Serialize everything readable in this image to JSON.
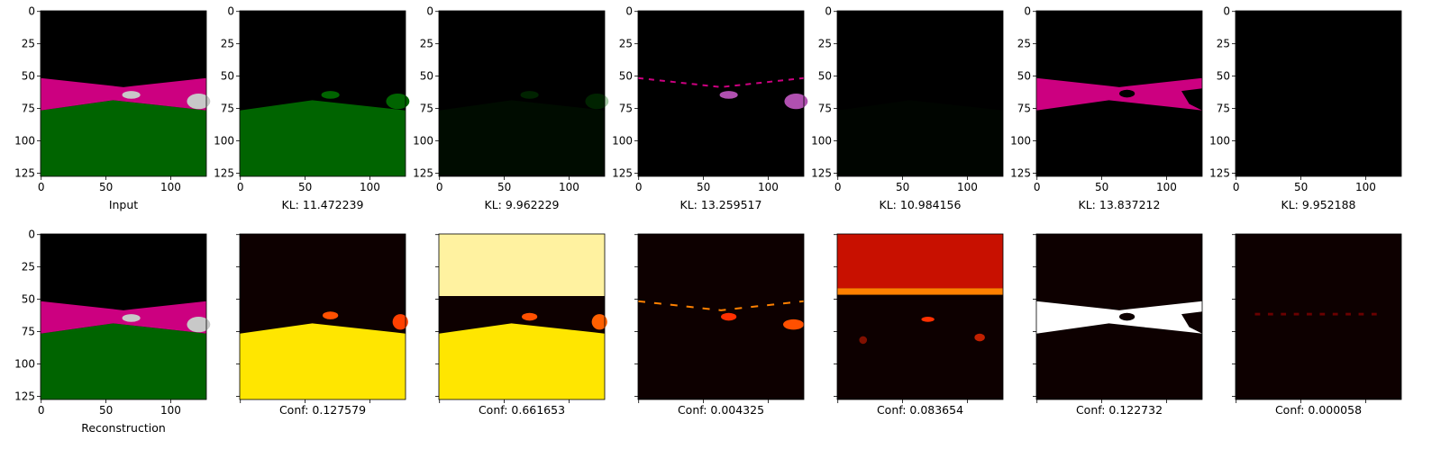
{
  "chart_data": {
    "type": "image-grid",
    "rows": 2,
    "cols": 7,
    "image_size": [
      128,
      128
    ],
    "x_ticks": [
      0,
      50,
      100
    ],
    "y_ticks": [
      0,
      25,
      50,
      75,
      100,
      125
    ],
    "colormap": "hot",
    "top_row": [
      {
        "caption": "Input",
        "kind": "scene",
        "channels": [
          "sky",
          "road",
          "grass",
          "cars"
        ],
        "intensity": 1.0
      },
      {
        "caption": "KL: 11.472239",
        "kind": "scene",
        "channels": [
          "grass",
          "cars"
        ],
        "intensity": 1.0
      },
      {
        "caption": "KL: 9.962229",
        "kind": "scene",
        "channels": [
          "grass",
          "cars"
        ],
        "intensity": 0.12
      },
      {
        "caption": "KL: 13.259517",
        "kind": "scene",
        "channels": [
          "road-edges",
          "cars"
        ],
        "intensity": 0.7
      },
      {
        "caption": "KL: 10.984156",
        "kind": "scene",
        "channels": [
          "grass"
        ],
        "intensity": 0.05
      },
      {
        "caption": "KL: 13.837212",
        "kind": "scene",
        "channels": [
          "road"
        ],
        "intensity": 1.0
      },
      {
        "caption": "KL: 9.952188",
        "kind": "scene",
        "channels": [],
        "intensity": 0.0
      }
    ],
    "bottom_row": [
      {
        "caption": "Reconstruction",
        "kind": "scene",
        "channels": [
          "sky",
          "road",
          "grass",
          "cars"
        ],
        "intensity": 1.0
      },
      {
        "caption": "Conf: 0.127579",
        "kind": "heatmap",
        "value": 0.127579
      },
      {
        "caption": "Conf: 0.661653",
        "kind": "heatmap",
        "value": 0.661653
      },
      {
        "caption": "Conf: 0.004325",
        "kind": "heatmap",
        "value": 0.004325
      },
      {
        "caption": "Conf: 0.083654",
        "kind": "heatmap",
        "value": 0.083654
      },
      {
        "caption": "Conf: 0.122732",
        "kind": "heatmap",
        "value": 0.122732
      },
      {
        "caption": "Conf: 0.000058",
        "kind": "heatmap",
        "value": 5.8e-05
      }
    ],
    "colors": {
      "sky": "#000000",
      "road": "#cc0080",
      "grass": "#006400",
      "car": "#c8c8c8",
      "heat_dark": "#0d0000",
      "heat_red": "#e00000",
      "heat_yellow": "#ffe600",
      "heat_white": "#ffffff"
    }
  }
}
